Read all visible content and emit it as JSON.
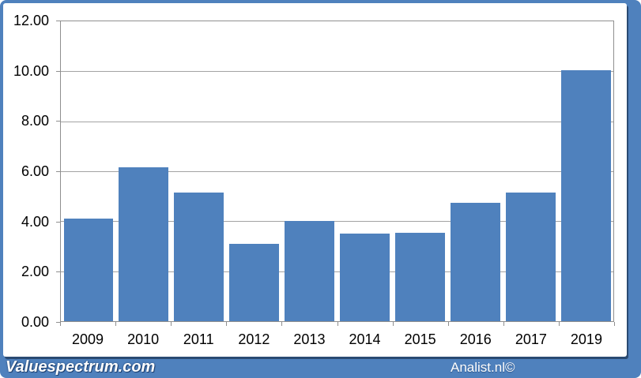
{
  "watermarks": {
    "left": "Valuespectrum.com",
    "right": "Analist.nl©"
  },
  "colors": {
    "frame_blue": "#4f81bd",
    "bar_blue": "#4f81bd",
    "panel_white": "#ffffff",
    "panel_shadow": "#2a4a72",
    "gridline_gray": "#a3a3a3",
    "axis_gray": "#8f8f8f",
    "label_black": "#000000",
    "watermark_white": "#ffffff"
  },
  "chart_data": {
    "type": "bar",
    "title": "",
    "categories": [
      "2009",
      "2010",
      "2011",
      "2012",
      "2013",
      "2014",
      "2015",
      "2016",
      "2017",
      "2019"
    ],
    "values": [
      4.1,
      6.15,
      5.15,
      3.1,
      4.0,
      3.5,
      3.55,
      4.75,
      5.15,
      10.05
    ],
    "xlabel": "",
    "ylabel": "",
    "ylim": [
      0,
      12
    ],
    "ytick_step": 2,
    "ytick_labels": [
      "0.00",
      "2.00",
      "4.00",
      "6.00",
      "8.00",
      "10.00",
      "12.00"
    ],
    "grid": true,
    "legend": false,
    "bar_gap_fraction": 0.1
  }
}
